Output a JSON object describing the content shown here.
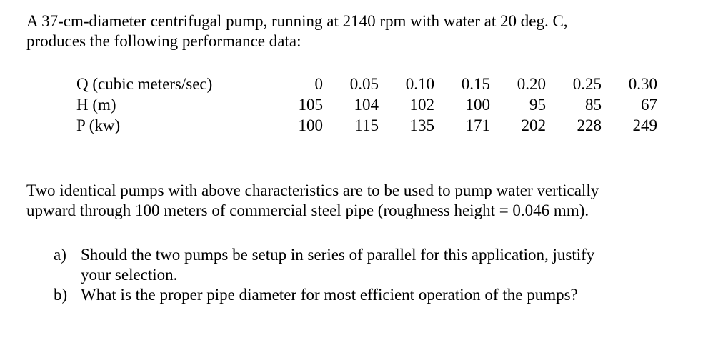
{
  "intro": {
    "line1": "A 37-cm-diameter centrifugal pump, running at 2140 rpm with water at 20 deg. C,",
    "line2": "produces the following performance data:"
  },
  "table": {
    "rows": [
      {
        "label": "Q (cubic meters/sec)",
        "values": [
          "0",
          "0.05",
          "0.10",
          "0.15",
          "0.20",
          "0.25",
          "0.30"
        ]
      },
      {
        "label": "H (m)",
        "values": [
          "105",
          "104",
          "102",
          "100",
          "95",
          "85",
          "67"
        ]
      },
      {
        "label": "P (kw)",
        "values": [
          "100",
          "115",
          "135",
          "171",
          "202",
          "228",
          "249"
        ]
      }
    ]
  },
  "paragraph2": {
    "line1": "Two identical pumps with above characteristics are to be used to pump water vertically",
    "line2": "upward through 100 meters of commercial steel pipe (roughness height = 0.046 mm)."
  },
  "questions": [
    {
      "marker": "a)",
      "line1": "Should the two pumps be setup in series of parallel for this application, justify",
      "line2": "your selection."
    },
    {
      "marker": "b)",
      "line1": "What is the proper pipe diameter for most efficient operation of the pumps?"
    }
  ]
}
